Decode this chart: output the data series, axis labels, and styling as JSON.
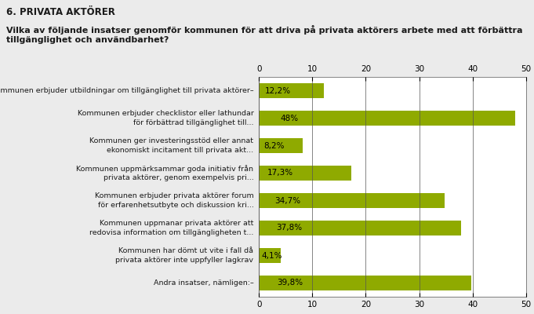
{
  "title_section": "6. PRIVATA AKTÖRER",
  "subtitle": "Vilka av följande insatser genomför kommunen för att driva på privata aktörers arbete med att förbättra\ntillgänglighet och användbarhet?",
  "categories": [
    "Kommunen erbjuder utbildningar om tillgänglighet till privata aktörer–",
    "Kommunen erbjuder checklistor eller lathundar\nför förbättrad tillgänglighet till...",
    "Kommunen ger investeringsstöd eller annat\nekonomiskt incitament till privata akt...",
    "Kommunen uppmärksammar goda initiativ från\nprivata aktörer, genom exempelvis pri...",
    "Kommunen erbjuder privata aktörer forum\nför erfarenhetsutbyte och diskussion kri...",
    "Kommunen uppmanar privata aktörer att\nredovisa information om tillgängligheten t...",
    "Kommunen har dömt ut vite i fall då\nprivata aktörer inte uppfyller lagkrav",
    "Andra insatser, nämligen:–"
  ],
  "values": [
    12.2,
    48.0,
    8.2,
    17.3,
    34.7,
    37.8,
    4.1,
    39.8
  ],
  "labels": [
    "12,2%",
    "48%",
    "8,2%",
    "17,3%",
    "34,7%",
    "37,8%",
    "4,1%",
    "39,8%"
  ],
  "bar_color": "#8faa00",
  "background_color": "#ebebeb",
  "plot_background": "#ffffff",
  "xlim": [
    0,
    50
  ],
  "xticks": [
    0,
    10,
    20,
    30,
    40,
    50
  ],
  "bar_height": 0.55
}
